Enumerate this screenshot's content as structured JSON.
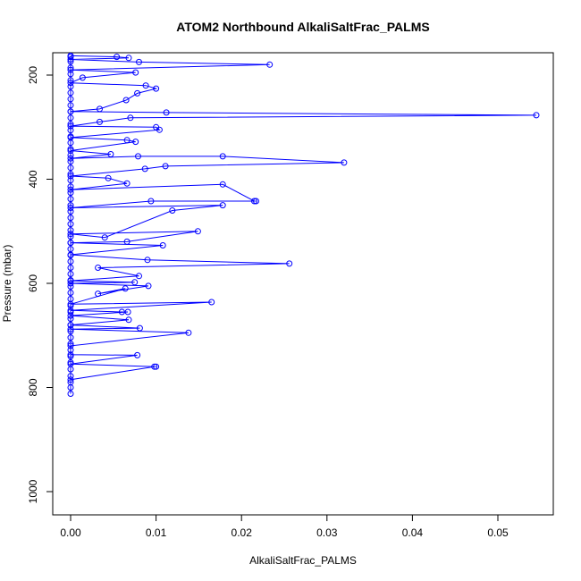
{
  "chart_data": {
    "type": "line",
    "title": "ATOM2 Northbound AlkaliSaltFrac_PALMS",
    "xlabel": "AlkaliSaltFrac_PALMS",
    "ylabel": "Pressure (mbar)",
    "xlim": [
      0,
      0.055
    ],
    "ylim": [
      1040,
      160
    ],
    "y_reversed": true,
    "grid": false,
    "legend": "none",
    "x_ticks": [
      0.0,
      0.01,
      0.02,
      0.03,
      0.04,
      0.05
    ],
    "x_tick_labels": [
      "0.00",
      "0.01",
      "0.02",
      "0.03",
      "0.04",
      "0.05"
    ],
    "y_ticks": [
      200,
      400,
      600,
      800,
      1000
    ],
    "y_tick_labels": [
      "200",
      "400",
      "600",
      "800",
      "1000"
    ],
    "series": [
      {
        "color": "#0000ff",
        "marker": "open-circle",
        "points": [
          [
            0.0,
            812
          ],
          [
            0.0,
            800
          ],
          [
            0.0,
            790
          ],
          [
            0.0,
            778
          ],
          [
            0.0,
            765
          ],
          [
            0.0,
            752
          ],
          [
            0.0,
            740
          ],
          [
            0.0,
            728
          ],
          [
            0.0,
            716
          ],
          [
            0.0,
            704
          ],
          [
            0.0,
            692
          ],
          [
            0.0,
            680
          ],
          [
            0.0,
            668
          ],
          [
            0.0,
            655
          ],
          [
            0.0,
            643
          ],
          [
            0.0,
            630
          ],
          [
            0.0,
            618
          ],
          [
            0.0,
            606
          ],
          [
            0.0,
            594
          ],
          [
            0.0,
            582
          ],
          [
            0.0,
            570
          ],
          [
            0.0,
            558
          ],
          [
            0.0,
            546
          ],
          [
            0.0,
            534
          ],
          [
            0.0,
            522
          ],
          [
            0.0,
            510
          ],
          [
            0.0,
            498
          ],
          [
            0.0,
            486
          ],
          [
            0.0,
            474
          ],
          [
            0.0,
            462
          ],
          [
            0.0,
            450
          ],
          [
            0.0,
            438
          ],
          [
            0.0,
            426
          ],
          [
            0.0,
            414
          ],
          [
            0.0,
            402
          ],
          [
            0.0,
            390
          ],
          [
            0.0,
            378
          ],
          [
            0.0,
            366
          ],
          [
            0.0,
            354
          ],
          [
            0.0,
            342
          ],
          [
            0.0,
            330
          ],
          [
            0.0,
            318
          ],
          [
            0.0,
            306
          ],
          [
            0.0,
            294
          ],
          [
            0.0,
            282
          ],
          [
            0.0,
            270
          ],
          [
            0.0,
            258
          ],
          [
            0.0,
            246
          ],
          [
            0.0,
            234
          ],
          [
            0.0,
            222
          ],
          [
            0.0,
            210
          ],
          [
            0.0,
            198
          ],
          [
            0.0,
            186
          ],
          [
            0.0,
            174
          ],
          [
            0.0,
            165
          ],
          [
            0.0,
            785
          ],
          [
            0.0098,
            760
          ],
          [
            0.01,
            760
          ],
          [
            0.0,
            755
          ],
          [
            0.0078,
            738
          ],
          [
            0.0,
            737
          ],
          [
            0.0,
            720
          ],
          [
            0.0138,
            695
          ],
          [
            0.0,
            688
          ],
          [
            0.0081,
            686
          ],
          [
            0.0,
            680
          ],
          [
            0.0068,
            670
          ],
          [
            0.0,
            662
          ],
          [
            0.0067,
            655
          ],
          [
            0.006,
            655
          ],
          [
            0.0,
            652
          ],
          [
            0.0165,
            636
          ],
          [
            0.0,
            640
          ],
          [
            0.0064,
            610
          ],
          [
            0.0032,
            620
          ],
          [
            0.0091,
            605
          ],
          [
            0.0,
            600
          ],
          [
            0.0075,
            598
          ],
          [
            0.0,
            595
          ],
          [
            0.008,
            586
          ],
          [
            0.0032,
            570
          ],
          [
            0.0256,
            562
          ],
          [
            0.009,
            555
          ],
          [
            0.0,
            545
          ],
          [
            0.0108,
            527
          ],
          [
            0.0,
            522
          ],
          [
            0.0066,
            520
          ],
          [
            0.0149,
            500
          ],
          [
            0.0,
            505
          ],
          [
            0.004,
            512
          ],
          [
            0.0119,
            460
          ],
          [
            0.0178,
            450
          ],
          [
            0.0,
            455
          ],
          [
            0.0094,
            442
          ],
          [
            0.0217,
            442
          ],
          [
            0.0215,
            442
          ],
          [
            0.0178,
            410
          ],
          [
            0.0,
            420
          ],
          [
            0.0066,
            408
          ],
          [
            0.0044,
            398
          ],
          [
            0.0,
            394
          ],
          [
            0.0087,
            380
          ],
          [
            0.0111,
            375
          ],
          [
            0.032,
            368
          ],
          [
            0.0178,
            356
          ],
          [
            0.0079,
            356
          ],
          [
            0.0,
            360
          ],
          [
            0.0047,
            352
          ],
          [
            0.0,
            345
          ],
          [
            0.0076,
            328
          ],
          [
            0.0066,
            325
          ],
          [
            0.0,
            320
          ],
          [
            0.0104,
            305
          ],
          [
            0.01,
            300
          ],
          [
            0.0,
            298
          ],
          [
            0.0034,
            290
          ],
          [
            0.007,
            282
          ],
          [
            0.0545,
            277
          ],
          [
            0.0112,
            272
          ],
          [
            0.0,
            270
          ],
          [
            0.0034,
            265
          ],
          [
            0.0065,
            248
          ],
          [
            0.0078,
            235
          ],
          [
            0.01,
            226
          ],
          [
            0.0088,
            220
          ],
          [
            0.0,
            215
          ],
          [
            0.0014,
            205
          ],
          [
            0.0076,
            195
          ],
          [
            0.0,
            190
          ],
          [
            0.0233,
            180
          ],
          [
            0.008,
            175
          ],
          [
            0.0,
            170
          ],
          [
            0.0068,
            167
          ],
          [
            0.0054,
            165
          ],
          [
            0.0,
            163
          ]
        ]
      }
    ]
  }
}
